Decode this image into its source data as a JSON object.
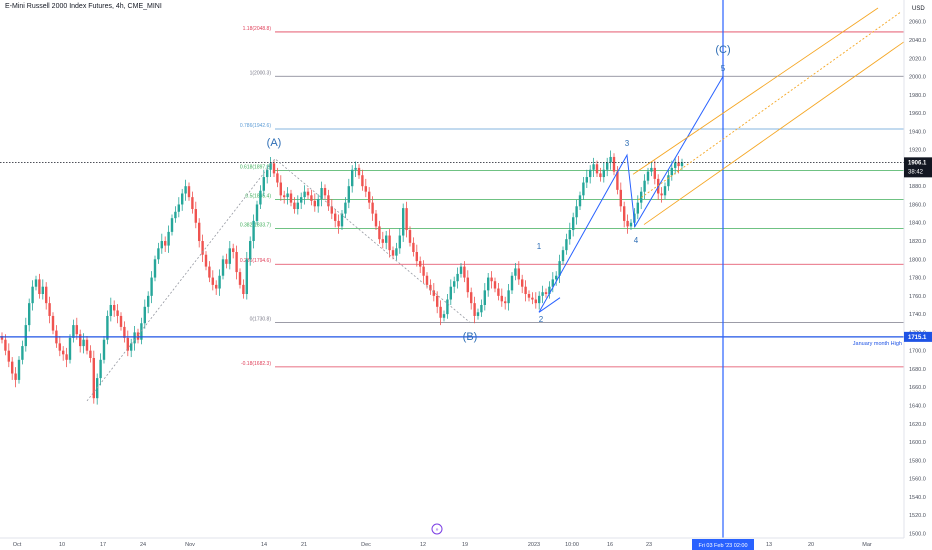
{
  "header": {
    "title": "E-Mini Russell 2000 Index Futures, 4h, CME_MINI"
  },
  "price_axis": {
    "currency": "USD",
    "ticks": [
      "2060.0",
      "2040.0",
      "2020.0",
      "2000.0",
      "1980.0",
      "1960.0",
      "1940.0",
      "1920.0",
      "1900.0",
      "1880.0",
      "1860.0",
      "1840.0",
      "1820.0",
      "1800.0",
      "1780.0",
      "1760.0",
      "1740.0",
      "1720.0",
      "1700.0",
      "1680.0",
      "1660.0",
      "1640.0",
      "1620.0",
      "1600.0",
      "1580.0",
      "1560.0",
      "1540.0",
      "1520.0",
      "1500.0"
    ],
    "last_price": "1906.1",
    "countdown": "38:42",
    "hline_label": "1715.1"
  },
  "time_axis": {
    "ticks": [
      "Oct",
      "10",
      "17",
      "24",
      "Nov",
      "14",
      "21",
      "Dec",
      "12",
      "19",
      "2023",
      "10:00",
      "16",
      "23",
      "13",
      "20",
      "Mar"
    ],
    "crosshair_label": "Fri 03 Feb '23  02:00"
  },
  "fib_levels": [
    {
      "ratio": "1.18",
      "label": "1.18(2048.8)",
      "price": 2048.8,
      "color": "#e0405a"
    },
    {
      "ratio": "1",
      "label": "1(2000.3)",
      "price": 2000.3,
      "color": "#7b7b8a"
    },
    {
      "ratio": "0.786",
      "label": "0.786(1942.6)",
      "price": 1942.6,
      "color": "#5b9bd5"
    },
    {
      "ratio": "0.618",
      "label": "0.618(1897.2)",
      "price": 1897.2,
      "color": "#3fae5a"
    },
    {
      "ratio": "0.5",
      "label": "0.5(1865.4)",
      "price": 1865.4,
      "color": "#3fae5a"
    },
    {
      "ratio": "0.382",
      "label": "0.382(1833.7)",
      "price": 1833.7,
      "color": "#3fae5a"
    },
    {
      "ratio": "0.236",
      "label": "0.236(1794.6)",
      "price": 1794.6,
      "color": "#e0405a"
    },
    {
      "ratio": "0",
      "label": "0(1730.8)",
      "price": 1730.8,
      "color": "#7b7b8a"
    },
    {
      "ratio": "-0.18",
      "label": "-0.18(1682.3)",
      "price": 1682.3,
      "color": "#e0405a"
    }
  ],
  "annotations": {
    "wave_labels": [
      "(A)",
      "(B)",
      "(C)"
    ],
    "impulse_labels": [
      "1",
      "2",
      "3",
      "4",
      "5"
    ],
    "january_high_label": "January month High"
  },
  "colors": {
    "up": "#26a69a",
    "down": "#ef5350",
    "wave_line": "#2962ff",
    "channel": "#f5a623",
    "hline": "#1e53e5",
    "axis_text": "#131722"
  },
  "chart_data": {
    "type": "candlestick",
    "title": "E-Mini Russell 2000 Index Futures, 4h, CME_MINI",
    "y_unit": "USD",
    "ylim": [
      1495,
      2075
    ],
    "last_price": 1906.1,
    "horizontal_line": {
      "price": 1715.1,
      "label": "January month High"
    },
    "key_prices": [
      {
        "point": "(A)",
        "price": 1910
      },
      {
        "point": "(B)",
        "price": 1730.8
      },
      {
        "point": "1",
        "price": 1800
      },
      {
        "point": "2",
        "price": 1742
      },
      {
        "point": "3",
        "price": 1914
      },
      {
        "point": "4",
        "price": 1836
      },
      {
        "point": "5",
        "price": 2000
      }
    ],
    "closes": [
      1712,
      1700,
      1688,
      1675,
      1668,
      1690,
      1705,
      1728,
      1752,
      1770,
      1778,
      1762,
      1770,
      1752,
      1738,
      1722,
      1708,
      1700,
      1696,
      1690,
      1714,
      1728,
      1718,
      1705,
      1712,
      1700,
      1692,
      1648,
      1670,
      1690,
      1712,
      1738,
      1750,
      1744,
      1738,
      1726,
      1714,
      1700,
      1708,
      1720,
      1712,
      1730,
      1748,
      1760,
      1780,
      1800,
      1812,
      1820,
      1815,
      1830,
      1845,
      1852,
      1860,
      1872,
      1880,
      1868,
      1855,
      1840,
      1820,
      1805,
      1792,
      1780,
      1772,
      1768,
      1782,
      1800,
      1795,
      1812,
      1808,
      1786,
      1772,
      1762,
      1800,
      1820,
      1842,
      1860,
      1875,
      1890,
      1898,
      1905,
      1894,
      1884,
      1870,
      1868,
      1872,
      1862,
      1855,
      1862,
      1868,
      1874,
      1870,
      1864,
      1858,
      1866,
      1878,
      1870,
      1858,
      1850,
      1842,
      1836,
      1850,
      1862,
      1880,
      1898,
      1900,
      1892,
      1880,
      1874,
      1862,
      1850,
      1836,
      1822,
      1818,
      1826,
      1810,
      1804,
      1812,
      1826,
      1856,
      1832,
      1818,
      1808,
      1798,
      1792,
      1782,
      1772,
      1766,
      1760,
      1748,
      1736,
      1740,
      1756,
      1770,
      1776,
      1784,
      1792,
      1780,
      1764,
      1752,
      1738,
      1742,
      1750,
      1766,
      1780,
      1776,
      1768,
      1760,
      1754,
      1752,
      1766,
      1782,
      1790,
      1778,
      1770,
      1762,
      1758,
      1756,
      1752,
      1760,
      1764,
      1762,
      1770,
      1778,
      1782,
      1798,
      1810,
      1822,
      1832,
      1846,
      1858,
      1870,
      1884,
      1890,
      1898,
      1904,
      1894,
      1890,
      1898,
      1906,
      1912,
      1896,
      1876,
      1858,
      1842,
      1836,
      1840,
      1850,
      1862,
      1874,
      1886,
      1896,
      1900,
      1888,
      1872,
      1870,
      1880,
      1892,
      1900,
      1906,
      1902,
      1906
    ]
  }
}
